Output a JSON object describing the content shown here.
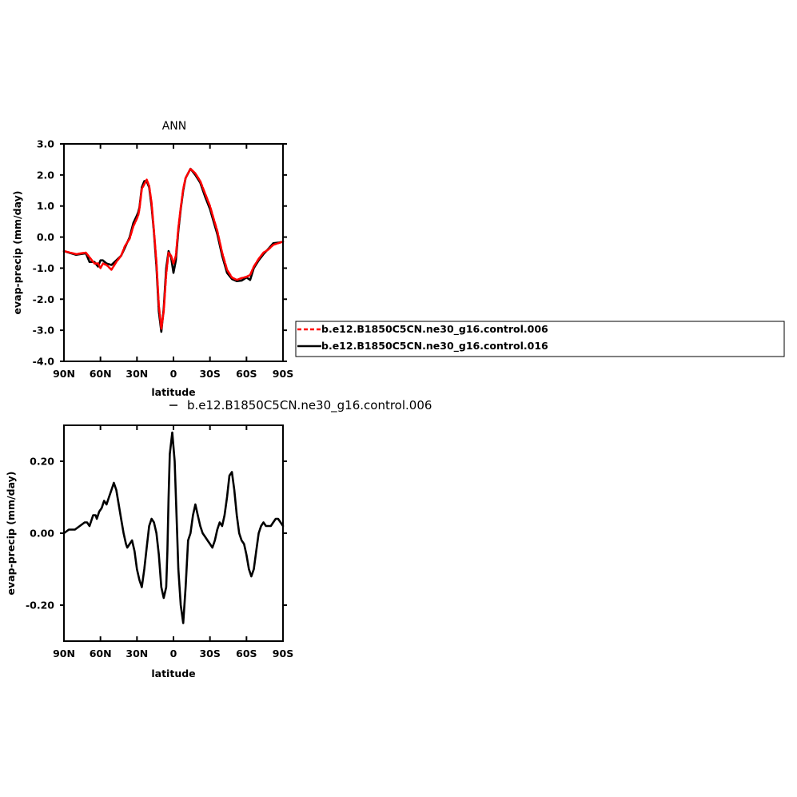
{
  "chart_data": [
    {
      "type": "line",
      "title": "ANN",
      "xlabel": "latitude",
      "ylabel": "evap-precip (mm/day)",
      "xlim": [
        90,
        -90
      ],
      "ylim": [
        -4.0,
        3.0
      ],
      "xticks": [
        90,
        60,
        30,
        0,
        -30,
        -60,
        -90
      ],
      "xtick_labels": [
        "90N",
        "60N",
        "30N",
        "0",
        "30S",
        "60S",
        "90S"
      ],
      "yticks": [
        -4.0,
        -3.0,
        -2.0,
        -1.0,
        0.0,
        1.0,
        2.0,
        3.0
      ],
      "ytick_labels": [
        "-4.0",
        "-3.0",
        "-2.0",
        "-1.0",
        "0.0",
        "1.0",
        "2.0",
        "3.0"
      ],
      "grid": false,
      "legend_position": "right",
      "series": [
        {
          "name": "b.e12.B1850C5CN.ne30_g16.control.006",
          "color": "#ff0000",
          "dash": true,
          "x": [
            90,
            80,
            72,
            69,
            65,
            62,
            60,
            58,
            55,
            51,
            47,
            43,
            40,
            36,
            33,
            30,
            29,
            28,
            26,
            24,
            22,
            20,
            18,
            16,
            14,
            12,
            10,
            8,
            6,
            4,
            2,
            0,
            -2,
            -4,
            -6,
            -8,
            -10,
            -14,
            -18,
            -22,
            -26,
            -30,
            -33,
            -36,
            -40,
            -44,
            -48,
            -52,
            -56,
            -60,
            -63,
            -66,
            -70,
            -74,
            -78,
            -82,
            -86,
            -90
          ],
          "y": [
            -0.45,
            -0.55,
            -0.5,
            -0.65,
            -0.85,
            -0.85,
            -1.0,
            -0.85,
            -0.9,
            -1.05,
            -0.8,
            -0.6,
            -0.3,
            -0.05,
            0.35,
            0.6,
            0.7,
            0.9,
            1.55,
            1.7,
            1.85,
            1.65,
            1.1,
            0.2,
            -0.8,
            -2.2,
            -2.95,
            -2.4,
            -1.2,
            -0.5,
            -0.6,
            -0.85,
            -0.6,
            0.3,
            0.95,
            1.55,
            1.9,
            2.2,
            2.05,
            1.8,
            1.4,
            1.0,
            0.6,
            0.2,
            -0.5,
            -1.05,
            -1.3,
            -1.38,
            -1.32,
            -1.28,
            -1.22,
            -0.95,
            -0.7,
            -0.5,
            -0.4,
            -0.25,
            -0.2,
            -0.15
          ]
        },
        {
          "name": "b.e12.B1850C5CN.ne30_g16.control.016",
          "color": "#000000",
          "dash": false,
          "x": [
            90,
            80,
            72,
            69,
            65,
            62,
            60,
            58,
            55,
            51,
            47,
            43,
            40,
            36,
            33,
            30,
            29,
            28,
            26,
            24,
            22,
            20,
            18,
            16,
            14,
            12,
            10,
            8,
            6,
            4,
            2,
            0,
            -2,
            -4,
            -6,
            -8,
            -10,
            -14,
            -18,
            -22,
            -26,
            -30,
            -33,
            -36,
            -40,
            -44,
            -48,
            -52,
            -56,
            -60,
            -63,
            -66,
            -70,
            -74,
            -78,
            -82,
            -86,
            -90
          ],
          "y": [
            -0.45,
            -0.57,
            -0.52,
            -0.8,
            -0.8,
            -0.95,
            -0.75,
            -0.75,
            -0.85,
            -0.9,
            -0.75,
            -0.6,
            -0.35,
            0.0,
            0.45,
            0.7,
            0.8,
            0.95,
            1.6,
            1.8,
            1.8,
            1.6,
            1.0,
            0.15,
            -0.95,
            -2.4,
            -3.05,
            -2.3,
            -1.0,
            -0.45,
            -0.65,
            -1.15,
            -0.75,
            0.2,
            0.9,
            1.5,
            1.9,
            2.2,
            2.0,
            1.75,
            1.3,
            0.9,
            0.5,
            0.1,
            -0.6,
            -1.15,
            -1.35,
            -1.42,
            -1.4,
            -1.3,
            -1.38,
            -1.0,
            -0.75,
            -0.55,
            -0.38,
            -0.2,
            -0.18,
            -0.15
          ]
        }
      ]
    },
    {
      "type": "line",
      "title": "b.e12.B1850C5CN.ne30_g16.control.006",
      "xlabel": "latitude",
      "ylabel": "evap-precip (mm/day)",
      "xlim": [
        90,
        -90
      ],
      "ylim": [
        -0.3,
        0.3
      ],
      "xticks": [
        90,
        60,
        30,
        0,
        -30,
        -60,
        -90
      ],
      "xtick_labels": [
        "90N",
        "60N",
        "30N",
        "0",
        "30S",
        "60S",
        "90S"
      ],
      "yticks": [
        -0.2,
        0.0,
        0.2
      ],
      "ytick_labels": [
        "-0.20",
        "0.00",
        "0.20"
      ],
      "grid": false,
      "series": [
        {
          "name": "",
          "color": "#000000",
          "dash": false,
          "x": [
            90,
            86,
            81,
            77,
            73,
            71,
            69,
            67,
            66,
            64,
            63,
            61,
            59,
            57,
            55,
            53,
            51,
            49,
            47,
            45,
            43,
            41,
            39,
            38,
            36,
            34,
            32,
            30,
            28,
            26,
            24,
            22,
            20,
            18,
            16,
            14,
            12,
            10,
            8,
            6,
            5,
            4,
            3,
            1,
            -1,
            -3,
            -4,
            -6,
            -8,
            -10,
            -12,
            -14,
            -16,
            -18,
            -20,
            -22,
            -24,
            -26,
            -28,
            -30,
            -32,
            -34,
            -36,
            -38,
            -40,
            -42,
            -44,
            -46,
            -48,
            -50,
            -52,
            -54,
            -56,
            -58,
            -60,
            -62,
            -64,
            -66,
            -68,
            -70,
            -72,
            -74,
            -76,
            -78,
            -80,
            -82,
            -84,
            -86,
            -88,
            -90
          ],
          "y": [
            0.0,
            0.01,
            0.01,
            0.02,
            0.03,
            0.03,
            0.02,
            0.04,
            0.05,
            0.05,
            0.04,
            0.06,
            0.07,
            0.09,
            0.08,
            0.1,
            0.12,
            0.14,
            0.12,
            0.08,
            0.04,
            0.0,
            -0.03,
            -0.04,
            -0.03,
            -0.02,
            -0.05,
            -0.1,
            -0.13,
            -0.15,
            -0.1,
            -0.04,
            0.02,
            0.04,
            0.03,
            0.0,
            -0.06,
            -0.15,
            -0.18,
            -0.15,
            -0.05,
            0.1,
            0.22,
            0.28,
            0.2,
            0.0,
            -0.1,
            -0.2,
            -0.25,
            -0.15,
            -0.02,
            0.0,
            0.05,
            0.08,
            0.05,
            0.02,
            0.0,
            -0.01,
            -0.02,
            -0.03,
            -0.04,
            -0.02,
            0.01,
            0.03,
            0.02,
            0.05,
            0.1,
            0.16,
            0.17,
            0.12,
            0.05,
            0.0,
            -0.02,
            -0.03,
            -0.06,
            -0.1,
            -0.12,
            -0.1,
            -0.05,
            0.0,
            0.02,
            0.03,
            0.02,
            0.02,
            0.02,
            0.03,
            0.04,
            0.04,
            0.03,
            0.02
          ]
        }
      ]
    }
  ]
}
